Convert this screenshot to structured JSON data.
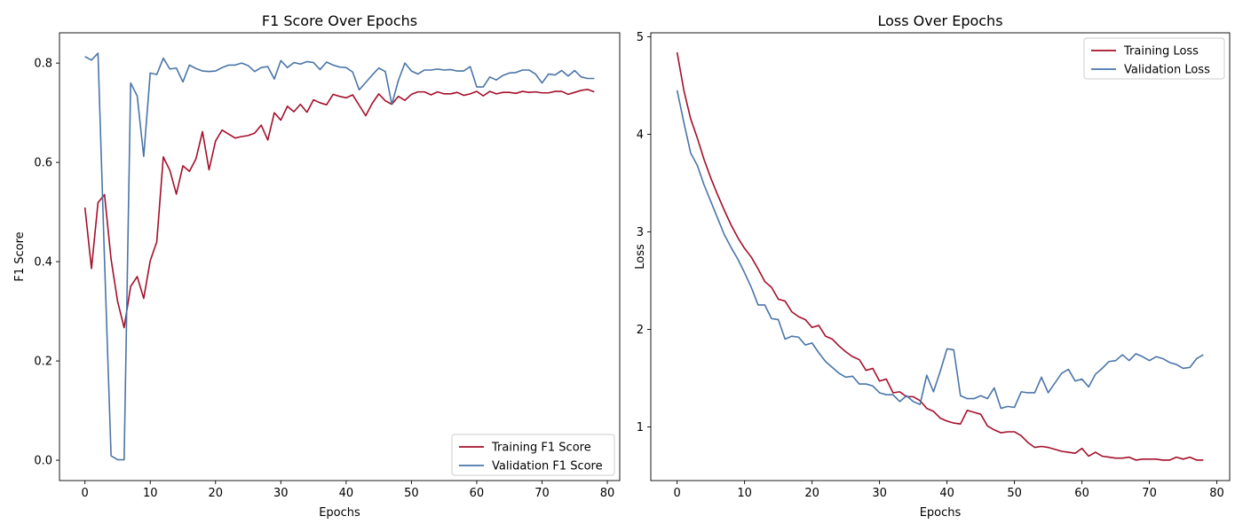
{
  "chart_data": [
    {
      "type": "line",
      "title": "F1 Score Over Epochs",
      "xlabel": "Epochs",
      "ylabel": "F1 Score",
      "xlim": [
        -3.9,
        81.9
      ],
      "ylim": [
        -0.041,
        0.861
      ],
      "xticks": [
        0,
        10,
        20,
        30,
        40,
        50,
        60,
        70,
        80
      ],
      "yticks": [
        0.0,
        0.2,
        0.4,
        0.6,
        0.8
      ],
      "ytick_labels": [
        "0.0",
        "0.2",
        "0.4",
        "0.6",
        "0.8"
      ],
      "grid": false,
      "legend_position": "lower-right",
      "x": [
        0,
        1,
        2,
        3,
        4,
        5,
        6,
        7,
        8,
        9,
        10,
        11,
        12,
        13,
        14,
        15,
        16,
        17,
        18,
        19,
        20,
        21,
        22,
        23,
        24,
        25,
        26,
        27,
        28,
        29,
        30,
        31,
        32,
        33,
        34,
        35,
        36,
        37,
        38,
        39,
        40,
        41,
        42,
        43,
        44,
        45,
        46,
        47,
        48,
        49,
        50,
        51,
        52,
        53,
        54,
        55,
        56,
        57,
        58,
        59,
        60,
        61,
        62,
        63,
        64,
        65,
        66,
        67,
        68,
        69,
        70,
        71,
        72,
        73,
        74,
        75,
        76,
        77,
        78
      ],
      "series": [
        {
          "name": "Training F1 Score",
          "color": "#a50f2a",
          "values": [
            0.509,
            0.386,
            0.519,
            0.535,
            0.405,
            0.32,
            0.267,
            0.35,
            0.37,
            0.326,
            0.402,
            0.44,
            0.611,
            0.584,
            0.536,
            0.593,
            0.582,
            0.607,
            0.662,
            0.585,
            0.643,
            0.665,
            0.657,
            0.649,
            0.652,
            0.654,
            0.659,
            0.675,
            0.645,
            0.7,
            0.685,
            0.713,
            0.702,
            0.717,
            0.701,
            0.726,
            0.72,
            0.716,
            0.737,
            0.733,
            0.73,
            0.736,
            0.715,
            0.694,
            0.719,
            0.738,
            0.724,
            0.717,
            0.733,
            0.725,
            0.737,
            0.742,
            0.742,
            0.736,
            0.742,
            0.738,
            0.738,
            0.741,
            0.735,
            0.738,
            0.743,
            0.734,
            0.743,
            0.738,
            0.741,
            0.741,
            0.739,
            0.743,
            0.741,
            0.742,
            0.74,
            0.74,
            0.743,
            0.743,
            0.737,
            0.741,
            0.745,
            0.747,
            0.742
          ]
        },
        {
          "name": "Validation F1 Score",
          "color": "#4a75a8",
          "values": [
            0.813,
            0.806,
            0.82,
            0.402,
            0.009,
            0.001,
            0.001,
            0.76,
            0.734,
            0.612,
            0.78,
            0.777,
            0.81,
            0.788,
            0.79,
            0.762,
            0.796,
            0.789,
            0.784,
            0.783,
            0.784,
            0.791,
            0.796,
            0.796,
            0.8,
            0.795,
            0.783,
            0.791,
            0.793,
            0.768,
            0.805,
            0.791,
            0.801,
            0.798,
            0.803,
            0.801,
            0.787,
            0.802,
            0.796,
            0.792,
            0.791,
            0.782,
            0.746,
            0.761,
            0.776,
            0.79,
            0.783,
            0.717,
            0.765,
            0.8,
            0.784,
            0.778,
            0.786,
            0.786,
            0.788,
            0.786,
            0.787,
            0.784,
            0.784,
            0.793,
            0.752,
            0.752,
            0.772,
            0.766,
            0.775,
            0.78,
            0.781,
            0.786,
            0.786,
            0.778,
            0.76,
            0.778,
            0.776,
            0.785,
            0.774,
            0.785,
            0.772,
            0.769,
            0.769
          ]
        }
      ]
    },
    {
      "type": "line",
      "title": "Loss Over Epochs",
      "xlabel": "Epochs",
      "ylabel": "Loss",
      "xlim": [
        -3.9,
        81.9
      ],
      "ylim": [
        0.45,
        5.04
      ],
      "xticks": [
        0,
        10,
        20,
        30,
        40,
        50,
        60,
        70,
        80
      ],
      "yticks": [
        1,
        2,
        3,
        4,
        5
      ],
      "ytick_labels": [
        "1",
        "2",
        "3",
        "4",
        "5"
      ],
      "grid": false,
      "legend_position": "upper-right",
      "x": [
        0,
        1,
        2,
        3,
        4,
        5,
        6,
        7,
        8,
        9,
        10,
        11,
        12,
        13,
        14,
        15,
        16,
        17,
        18,
        19,
        20,
        21,
        22,
        23,
        24,
        25,
        26,
        27,
        28,
        29,
        30,
        31,
        32,
        33,
        34,
        35,
        36,
        37,
        38,
        39,
        40,
        41,
        42,
        43,
        44,
        45,
        46,
        47,
        48,
        49,
        50,
        51,
        52,
        53,
        54,
        55,
        56,
        57,
        58,
        59,
        60,
        61,
        62,
        63,
        64,
        65,
        66,
        67,
        68,
        69,
        70,
        71,
        72,
        73,
        74,
        75,
        76,
        77,
        78
      ],
      "series": [
        {
          "name": "Training Loss",
          "color": "#a50f2a",
          "values": [
            4.84,
            4.45,
            4.16,
            3.96,
            3.74,
            3.55,
            3.38,
            3.22,
            3.07,
            2.94,
            2.83,
            2.74,
            2.62,
            2.49,
            2.43,
            2.31,
            2.29,
            2.18,
            2.13,
            2.1,
            2.02,
            2.04,
            1.93,
            1.9,
            1.83,
            1.77,
            1.72,
            1.69,
            1.58,
            1.6,
            1.47,
            1.49,
            1.35,
            1.36,
            1.31,
            1.31,
            1.27,
            1.19,
            1.16,
            1.09,
            1.06,
            1.04,
            1.03,
            1.17,
            1.15,
            1.13,
            1.01,
            0.97,
            0.94,
            0.95,
            0.95,
            0.91,
            0.84,
            0.79,
            0.8,
            0.79,
            0.77,
            0.75,
            0.74,
            0.73,
            0.78,
            0.7,
            0.74,
            0.7,
            0.69,
            0.68,
            0.68,
            0.69,
            0.66,
            0.67,
            0.67,
            0.67,
            0.66,
            0.66,
            0.69,
            0.67,
            0.69,
            0.66,
            0.66
          ]
        },
        {
          "name": "Validation Loss",
          "color": "#4a75a8",
          "values": [
            4.45,
            4.12,
            3.81,
            3.68,
            3.48,
            3.31,
            3.14,
            2.97,
            2.84,
            2.72,
            2.58,
            2.43,
            2.25,
            2.25,
            2.11,
            2.1,
            1.9,
            1.93,
            1.92,
            1.84,
            1.86,
            1.76,
            1.67,
            1.61,
            1.55,
            1.51,
            1.52,
            1.44,
            1.44,
            1.42,
            1.35,
            1.33,
            1.33,
            1.26,
            1.32,
            1.26,
            1.23,
            1.53,
            1.36,
            1.57,
            1.8,
            1.79,
            1.32,
            1.29,
            1.29,
            1.32,
            1.29,
            1.4,
            1.19,
            1.21,
            1.2,
            1.36,
            1.35,
            1.35,
            1.51,
            1.35,
            1.45,
            1.55,
            1.59,
            1.47,
            1.49,
            1.41,
            1.54,
            1.6,
            1.67,
            1.68,
            1.74,
            1.68,
            1.75,
            1.72,
            1.68,
            1.72,
            1.7,
            1.66,
            1.64,
            1.6,
            1.61,
            1.7,
            1.74
          ]
        }
      ]
    }
  ]
}
